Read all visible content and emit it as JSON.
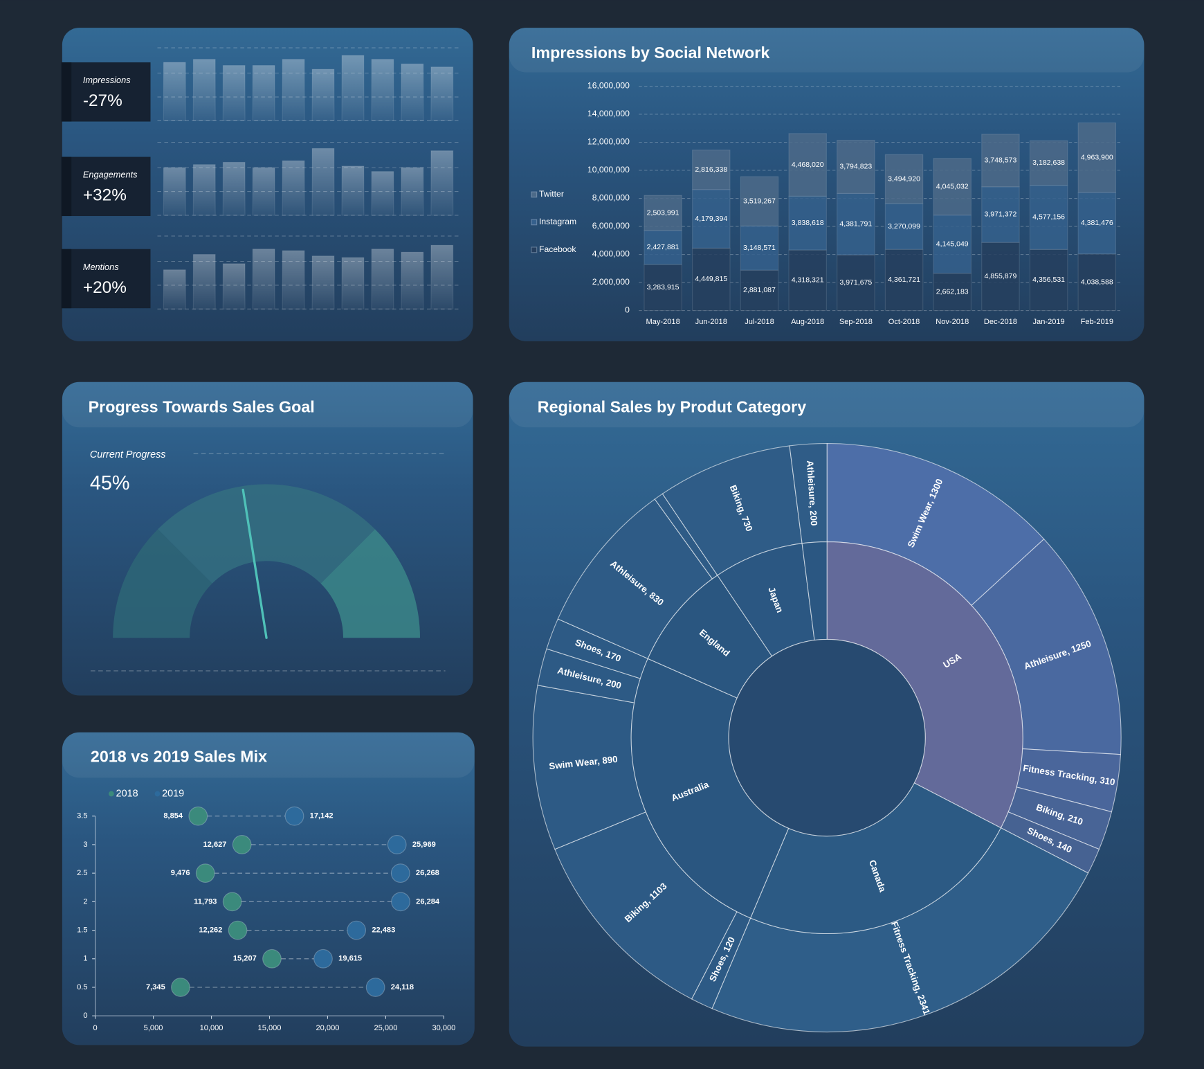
{
  "chart_data": [
    {
      "type": "bar",
      "title": "Impressions",
      "annotation": "-27%",
      "values": [
        76,
        80,
        72,
        72,
        80,
        67,
        85,
        80,
        74,
        70
      ],
      "ylim": [
        0,
        100
      ],
      "color": "#ffffff"
    },
    {
      "type": "bar",
      "title": "Engagements",
      "annotation": "+32%",
      "values": [
        62,
        66,
        69,
        62,
        71,
        87,
        64,
        57,
        62,
        84
      ],
      "ylim": [
        0,
        100
      ],
      "color": "#ffffff"
    },
    {
      "type": "bar",
      "title": "Mentions",
      "annotation": "+20%",
      "values": [
        51,
        71,
        59,
        78,
        76,
        69,
        67,
        78,
        74,
        83
      ],
      "ylim": [
        0,
        100
      ],
      "color": "#ffffff"
    },
    {
      "type": "bar",
      "stacked": true,
      "title": "Impressions by Social Network",
      "categories": [
        "May-2018",
        "Jun-2018",
        "Jul-2018",
        "Aug-2018",
        "Sep-2018",
        "Oct-2018",
        "Nov-2018",
        "Dec-2018",
        "Jan-2019",
        "Feb-2019"
      ],
      "series": [
        {
          "name": "Facebook",
          "color": "#263f5e",
          "values": [
            3283915,
            4449815,
            2881087,
            4318321,
            3971675,
            4361721,
            2662183,
            4855879,
            4356531,
            4038588
          ],
          "value_labels": [
            "3,283,915",
            "4,449,815",
            "2,881,087",
            "4,318,321",
            "3,971,675",
            "4,361,721",
            "2,662,183",
            "4,855,879",
            "4,356,531",
            "4,038,588"
          ]
        },
        {
          "name": "Instagram",
          "color": "#35608c",
          "values": [
            2427881,
            4179394,
            3148571,
            3838618,
            4381791,
            3270099,
            4145049,
            3971372,
            4577156,
            4381476
          ],
          "value_labels": [
            "2,427,881",
            "4,179,394",
            "3,148,571",
            "3,838,618",
            "4,381,791",
            "3,270,099",
            "4,145,049",
            "3,971,372",
            "4,577,156",
            "4,381,476"
          ]
        },
        {
          "name": "Twitter",
          "color": "#4c6a88",
          "values": [
            2503991,
            2816338,
            3519267,
            4468020,
            3794823,
            3494920,
            4045032,
            3748573,
            3182638,
            4963900
          ],
          "value_labels": [
            "2,503,991",
            "2,816,338",
            "3,519,267",
            "4,468,020",
            "3,794,823",
            "3,494,920",
            "4,045,032",
            "3,748,573",
            "3,182,638",
            "4,963,900"
          ]
        }
      ],
      "ylim": [
        0,
        16000000
      ],
      "yticks": [
        0,
        {
          "value": 2000000,
          "label": "2,000,000"
        },
        {
          "value": 4000000,
          "label": "4,000,000"
        },
        {
          "value": 6000000,
          "label": "6,000,000"
        },
        {
          "value": 8000000,
          "label": "8,000,000"
        },
        {
          "value": 10000000,
          "label": "10,000,000"
        },
        {
          "value": 12000000,
          "label": "12,000,000"
        },
        {
          "value": 14000000,
          "label": "14,000,000"
        },
        {
          "value": 16000000,
          "label": "16,000,000"
        }
      ],
      "grid": true,
      "legend": "left"
    },
    {
      "type": "gauge",
      "title": "Progress Towards Sales Goal",
      "label": "Current Progress",
      "value": 45,
      "value_label": "45%",
      "ylim": [
        0,
        100
      ],
      "color": "#4fc1b8"
    },
    {
      "type": "scatter",
      "title": "2018 vs 2019 Sales Mix",
      "series": [
        {
          "name": "2018",
          "color": "#3b8a7c",
          "x": [
            8854,
            12627,
            9476,
            11793,
            12262,
            15207,
            7345
          ],
          "y": [
            3.5,
            3,
            2.5,
            2,
            1.5,
            1,
            0.5
          ],
          "value_labels": [
            "8,854",
            "12,627",
            "9,476",
            "11,793",
            "12,262",
            "15,207",
            "7,345"
          ]
        },
        {
          "name": "2019",
          "color": "#2d6a9c",
          "x": [
            17142,
            25969,
            26268,
            26284,
            22483,
            19615,
            24118
          ],
          "y": [
            3.5,
            3,
            2.5,
            2,
            1.5,
            1,
            0.5
          ],
          "value_labels": [
            "17,142",
            "25,969",
            "26,268",
            "26,284",
            "22,483",
            "19,615",
            "24,118"
          ]
        }
      ],
      "xlim": [
        0,
        30000
      ],
      "xticks": [
        0,
        {
          "value": 5000,
          "label": "5,000"
        },
        {
          "value": 10000,
          "label": "10,000"
        },
        {
          "value": 15000,
          "label": "15,000"
        },
        {
          "value": 20000,
          "label": "20,000"
        },
        {
          "value": 25000,
          "label": "25,000"
        },
        {
          "value": 30000,
          "label": "30,000"
        }
      ],
      "ylim": [
        0,
        3.5
      ],
      "yticks": [
        0,
        0.5,
        1,
        1.5,
        2,
        2.5,
        3,
        3.5
      ],
      "legend": "top"
    },
    {
      "type": "sunburst",
      "title": "Regional Sales by Produt Category",
      "nodes": [
        {
          "name": "USA",
          "color": "#636a9a",
          "children": [
            {
              "label": "Swim Wear, 1300",
              "value": 1300,
              "color": "#4d6ea8"
            },
            {
              "label": "Athleisure, 1250",
              "value": 1250,
              "color": "#4a69a0"
            },
            {
              "label": "Fitness Tracking, 310",
              "value": 310,
              "color": "#4a669b"
            },
            {
              "label": "Biking, 210",
              "value": 210,
              "color": "#486496"
            },
            {
              "label": "Shoes, 140",
              "value": 140,
              "color": "#466292"
            }
          ]
        },
        {
          "name": "Canada",
          "color": "#2c5a84",
          "children": [
            {
              "label": "Fitness Tracking, 2341",
              "value": 2341,
              "color": "#2f5e89"
            }
          ]
        },
        {
          "name": "Australia",
          "color": "#2a5680",
          "children": [
            {
              "label": "Shoes, 120",
              "value": 120,
              "color": "#2d5a85"
            },
            {
              "label": "Biking, 1103",
              "value": 1103,
              "color": "#2d5a85"
            },
            {
              "label": "Swim Wear, 890",
              "value": 890,
              "color": "#2d5a85"
            },
            {
              "label": "Athleisure, 200",
              "value": 200,
              "color": "#2d5a85"
            },
            {
              "label": "Shoes, 170",
              "value": 170,
              "color": "#2d5a85"
            }
          ]
        },
        {
          "name": "England",
          "color": "#2a5680",
          "children": [
            {
              "label": "Athleisure, 830",
              "value": 830,
              "color": "#2e5b86"
            },
            {
              "label": null,
              "value": 50,
              "color": "#2e5b86"
            }
          ]
        },
        {
          "name": "Japan",
          "color": "#2b5782",
          "children": [
            {
              "label": "Biking, 730",
              "value": 730,
              "color": "#2f5c87"
            }
          ]
        },
        {
          "name": null,
          "color": "#2b5782",
          "children": [
            {
              "label": "Athleisure, 200",
              "value": 200,
              "color": "#2f5c87"
            }
          ]
        }
      ]
    }
  ]
}
